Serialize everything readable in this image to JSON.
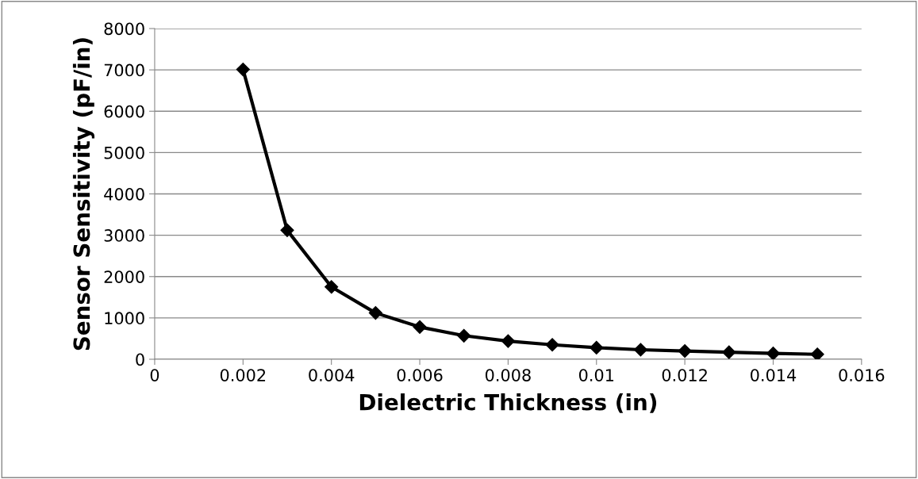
{
  "chart_data": {
    "type": "line",
    "xlabel": "Dielectric Thickness (in)",
    "ylabel": "Sensor Sensitivity (pF/in)",
    "x": [
      0.002,
      0.003,
      0.004,
      0.005,
      0.006,
      0.007,
      0.008,
      0.009,
      0.01,
      0.011,
      0.012,
      0.013,
      0.014,
      0.015
    ],
    "series": [
      {
        "color": "#000000",
        "values": [
          7010,
          3120,
          1750,
          1120,
          780,
          570,
          440,
          350,
          280,
          230,
          200,
          170,
          140,
          120
        ]
      }
    ],
    "xlim": [
      0,
      0.016
    ],
    "xticks": [
      0,
      0.002,
      0.004,
      0.006,
      0.008,
      0.01,
      0.012,
      0.014,
      0.016
    ],
    "ylim": [
      0,
      8000
    ],
    "yticks": [
      0,
      1000,
      2000,
      3000,
      4000,
      5000,
      6000,
      7000,
      8000
    ],
    "grid": "y",
    "legend": false,
    "marker": "diamond",
    "line_style": "solid"
  }
}
